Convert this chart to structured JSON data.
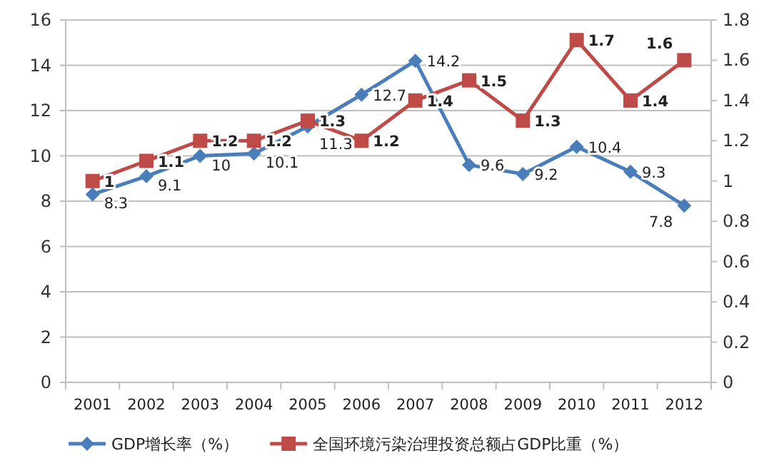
{
  "chart_data": {
    "type": "line",
    "categories": [
      "2001",
      "2002",
      "2003",
      "2004",
      "2005",
      "2006",
      "2007",
      "2008",
      "2009",
      "2010",
      "2011",
      "2012"
    ],
    "series": [
      {
        "name": "GDP增长率（%）",
        "color": "#4a7ebb",
        "marker": "diamond",
        "values": [
          8.3,
          9.1,
          10,
          10.1,
          11.3,
          12.7,
          14.2,
          9.6,
          9.2,
          10.4,
          9.3,
          7.8
        ]
      },
      {
        "name": "全国环境污染治理投资总额占GDP比重（%）",
        "color": "#be4b48",
        "marker": "square",
        "axis": "y2",
        "values": [
          1,
          1.1,
          1.2,
          1.2,
          1.3,
          1.2,
          1.4,
          1.5,
          1.3,
          1.7,
          1.4,
          1.6
        ]
      }
    ],
    "ylim": [
      0,
      16
    ],
    "yticks": [
      0,
      2,
      4,
      6,
      8,
      10,
      12,
      14,
      16
    ],
    "y2lim": [
      0,
      1.8
    ],
    "y2ticks": [
      0,
      0.2,
      0.4,
      0.6,
      0.8,
      1,
      1.2,
      1.4,
      1.6,
      1.8
    ],
    "grid": "y",
    "legend": "bottom",
    "data_labels": true
  }
}
